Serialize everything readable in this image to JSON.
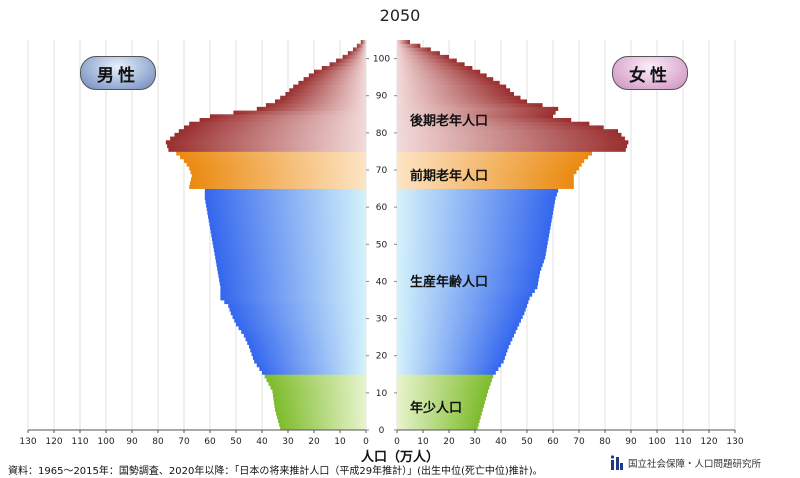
{
  "page": {
    "title": "2050",
    "x_unit_label": "人口（万人）",
    "source_note": "資料：1965～2015年：国勢調査、2020年以降：「日本の将来推計人口（平成29年推計）」(出生中位(死亡中位)推計)。",
    "logo_text": "国立社会保障・人口問題研究所",
    "male_label": "男性",
    "female_label": "女性"
  },
  "bands": [
    {
      "name": "後期老年人口",
      "from_age": 75,
      "to_age": 105,
      "color": "#a83a3a"
    },
    {
      "name": "前期老年人口",
      "from_age": 65,
      "to_age": 74,
      "color": "#f08c1e"
    },
    {
      "name": "生産年齢人口",
      "from_age": 15,
      "to_age": 64,
      "color": "#3a6ef0"
    },
    {
      "name": "年少人口",
      "from_age": 0,
      "to_age": 14,
      "color": "#8cc63f"
    }
  ],
  "chart_data": {
    "type": "population_pyramid",
    "title": "2050",
    "xlabel": "人口（万人）",
    "x_ticks": [
      130,
      120,
      110,
      100,
      90,
      80,
      70,
      60,
      50,
      40,
      30,
      20,
      10,
      0
    ],
    "y_ticks": [
      0,
      10,
      20,
      30,
      40,
      50,
      60,
      70,
      80,
      90,
      100
    ],
    "x_max": 130,
    "age_max": 105,
    "series": [
      {
        "name": "男性",
        "age_points": [
          [
            0,
            33
          ],
          [
            5,
            35
          ],
          [
            10,
            36
          ],
          [
            14,
            39
          ],
          [
            15,
            40
          ],
          [
            18,
            43
          ],
          [
            22,
            45
          ],
          [
            25,
            47
          ],
          [
            28,
            50
          ],
          [
            31,
            52
          ],
          [
            33,
            53
          ],
          [
            35,
            56
          ],
          [
            38,
            56
          ],
          [
            42,
            57
          ],
          [
            46,
            58
          ],
          [
            50,
            59
          ],
          [
            54,
            60
          ],
          [
            58,
            61
          ],
          [
            62,
            62
          ],
          [
            64,
            62
          ],
          [
            65,
            68
          ],
          [
            68,
            67
          ],
          [
            70,
            68
          ],
          [
            72,
            70
          ],
          [
            74,
            73
          ],
          [
            75,
            76
          ],
          [
            77,
            77
          ],
          [
            80,
            72
          ],
          [
            82,
            68
          ],
          [
            84,
            60
          ],
          [
            86,
            42
          ],
          [
            88,
            35
          ],
          [
            90,
            31
          ],
          [
            92,
            28
          ],
          [
            94,
            24
          ],
          [
            96,
            20
          ],
          [
            98,
            14
          ],
          [
            100,
            9
          ],
          [
            102,
            5
          ],
          [
            104,
            2
          ],
          [
            105,
            0
          ]
        ]
      },
      {
        "name": "女性",
        "age_points": [
          [
            0,
            31
          ],
          [
            5,
            33
          ],
          [
            10,
            35
          ],
          [
            14,
            37
          ],
          [
            15,
            38
          ],
          [
            18,
            41
          ],
          [
            22,
            43
          ],
          [
            25,
            45
          ],
          [
            28,
            47
          ],
          [
            31,
            49
          ],
          [
            33,
            50
          ],
          [
            35,
            51
          ],
          [
            38,
            54
          ],
          [
            42,
            55
          ],
          [
            46,
            57
          ],
          [
            50,
            58
          ],
          [
            54,
            59
          ],
          [
            58,
            60
          ],
          [
            62,
            61
          ],
          [
            64,
            62
          ],
          [
            65,
            68
          ],
          [
            68,
            68
          ],
          [
            70,
            70
          ],
          [
            72,
            72
          ],
          [
            74,
            75
          ],
          [
            75,
            88
          ],
          [
            77,
            89
          ],
          [
            80,
            85
          ],
          [
            82,
            74
          ],
          [
            84,
            60
          ],
          [
            86,
            62
          ],
          [
            88,
            50
          ],
          [
            90,
            45
          ],
          [
            92,
            42
          ],
          [
            94,
            37
          ],
          [
            96,
            32
          ],
          [
            98,
            26
          ],
          [
            100,
            20
          ],
          [
            102,
            13
          ],
          [
            104,
            5
          ],
          [
            105,
            0
          ]
        ]
      }
    ]
  }
}
